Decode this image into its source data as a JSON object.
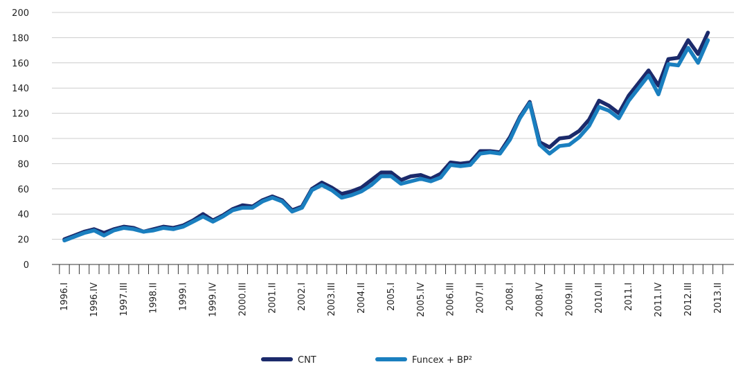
{
  "chart_data": {
    "type": "line",
    "categories": [
      "1996.I",
      null,
      null,
      "1996.IV",
      null,
      null,
      "1997.III",
      null,
      null,
      "1998.II",
      null,
      null,
      "1999.I",
      null,
      null,
      "1999.IV",
      null,
      null,
      "2000.III",
      null,
      null,
      "2001.II",
      null,
      null,
      "2002.I",
      null,
      null,
      "2003.III",
      null,
      null,
      "2004.II",
      null,
      null,
      "2005.I",
      null,
      null,
      "2005.IV",
      null,
      null,
      "2006.III",
      null,
      null,
      "2007.II",
      null,
      null,
      "2008.I",
      null,
      null,
      "2008.IV",
      null,
      null,
      "2009.III",
      null,
      null,
      "2010.II",
      null,
      null,
      "2011.I",
      null,
      null,
      "2011.IV",
      null,
      null,
      "2012.III",
      null,
      null,
      "2013.II",
      null
    ],
    "series": [
      {
        "name": "CNT",
        "color": "#1b2a6b",
        "values": [
          20,
          23,
          26,
          28,
          25,
          28,
          30,
          29,
          26,
          28,
          30,
          29,
          31,
          35,
          40,
          35,
          39,
          44,
          47,
          46,
          51,
          54,
          51,
          43,
          46,
          60,
          65,
          61,
          56,
          58,
          61,
          67,
          73,
          73,
          67,
          70,
          71,
          68,
          72,
          81,
          80,
          81,
          90,
          90,
          89,
          101,
          117,
          129,
          97,
          93,
          100,
          101,
          106,
          115,
          130,
          126,
          120,
          134,
          144,
          154,
          142,
          163,
          164,
          178,
          167,
          184,
          null,
          null
        ]
      },
      {
        "name": "Funcex + BP²",
        "color": "#1a7fbf",
        "values": [
          19,
          22,
          25,
          27,
          23,
          27,
          29,
          28,
          26,
          27,
          29,
          28,
          30,
          34,
          38,
          34,
          38,
          43,
          45,
          45,
          50,
          53,
          50,
          42,
          45,
          59,
          63,
          59,
          53,
          55,
          58,
          63,
          70,
          70,
          64,
          66,
          68,
          66,
          69,
          79,
          78,
          79,
          88,
          89,
          88,
          99,
          116,
          128,
          95,
          88,
          94,
          95,
          101,
          110,
          125,
          122,
          116,
          130,
          140,
          150,
          135,
          159,
          158,
          172,
          160,
          178,
          null,
          null
        ]
      }
    ],
    "ylim": [
      0,
      200
    ],
    "yticks": [
      0,
      20,
      40,
      60,
      80,
      100,
      120,
      140,
      160,
      180,
      200
    ],
    "grid": true
  }
}
